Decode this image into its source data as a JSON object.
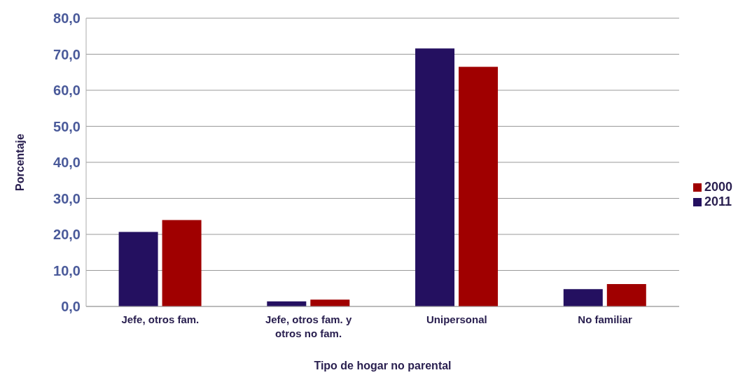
{
  "chart_data": {
    "type": "bar",
    "xlabel": "Tipo de hogar no parental",
    "ylabel": "Porcentaje",
    "categories": [
      "Jefe, otros fam.",
      "Jefe, otros fam. y otros no fam.",
      "Unipersonal",
      "No familiar"
    ],
    "series": [
      {
        "name": "2011",
        "color": "#241060",
        "values": [
          20.7,
          1.4,
          71.6,
          4.8
        ]
      },
      {
        "name": "2000",
        "color": "#a00000",
        "values": [
          24.0,
          1.9,
          66.5,
          6.2
        ]
      }
    ],
    "ylim": [
      0,
      80
    ],
    "yticks": [
      {
        "value": 0,
        "label": "0,0"
      },
      {
        "value": 10,
        "label": "10,0"
      },
      {
        "value": 20,
        "label": "20,0"
      },
      {
        "value": 30,
        "label": "30,0"
      },
      {
        "value": 40,
        "label": "40,0"
      },
      {
        "value": 50,
        "label": "50,0"
      },
      {
        "value": 60,
        "label": "60,0"
      },
      {
        "value": 70,
        "label": "70,0"
      },
      {
        "value": 80,
        "label": "80,0"
      }
    ],
    "grid": "y",
    "legend": "right"
  }
}
